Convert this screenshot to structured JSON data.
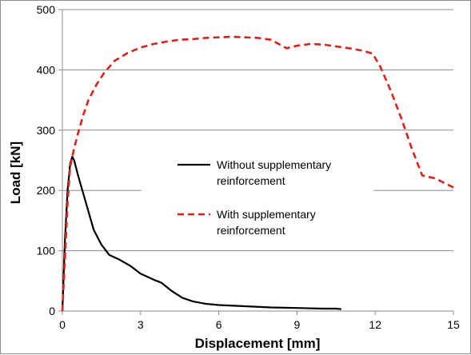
{
  "chart_data": {
    "type": "line",
    "title": "",
    "xlabel": "Displacement [mm]",
    "ylabel": "Load [kN]",
    "xlim": [
      0,
      15
    ],
    "ylim": [
      0,
      500
    ],
    "xticks": [
      0,
      3,
      6,
      9,
      12,
      15
    ],
    "yticks": [
      0,
      100,
      200,
      300,
      400,
      500
    ],
    "grid": "horizontal",
    "legend_position": "center-right",
    "series": [
      {
        "name": "Without supplementary reinforcement",
        "color": "#000000",
        "style": "solid",
        "points": [
          [
            0,
            0
          ],
          [
            0.05,
            60
          ],
          [
            0.1,
            120
          ],
          [
            0.2,
            200
          ],
          [
            0.3,
            245
          ],
          [
            0.38,
            256
          ],
          [
            0.45,
            250
          ],
          [
            0.6,
            225
          ],
          [
            0.8,
            195
          ],
          [
            1.0,
            165
          ],
          [
            1.2,
            135
          ],
          [
            1.5,
            110
          ],
          [
            1.8,
            93
          ],
          [
            2.2,
            85
          ],
          [
            2.6,
            75
          ],
          [
            3.0,
            62
          ],
          [
            3.5,
            52
          ],
          [
            3.8,
            47
          ],
          [
            4.2,
            33
          ],
          [
            4.6,
            22
          ],
          [
            5.0,
            16
          ],
          [
            5.5,
            12
          ],
          [
            6.0,
            10
          ],
          [
            7.0,
            8
          ],
          [
            8.0,
            6
          ],
          [
            9.0,
            5
          ],
          [
            10.0,
            4
          ],
          [
            10.5,
            4
          ],
          [
            10.7,
            3
          ]
        ]
      },
      {
        "name": "With supplementary reinforcement",
        "color": "#e0201b",
        "style": "dashed",
        "points": [
          [
            0,
            0
          ],
          [
            0.1,
            90
          ],
          [
            0.2,
            180
          ],
          [
            0.3,
            240
          ],
          [
            0.45,
            270
          ],
          [
            0.6,
            295
          ],
          [
            0.8,
            325
          ],
          [
            1.0,
            350
          ],
          [
            1.3,
            375
          ],
          [
            1.6,
            395
          ],
          [
            2.0,
            415
          ],
          [
            2.5,
            428
          ],
          [
            3.0,
            437
          ],
          [
            3.5,
            443
          ],
          [
            4.0,
            447
          ],
          [
            4.5,
            450
          ],
          [
            5.0,
            451
          ],
          [
            5.5,
            453
          ],
          [
            6.0,
            454
          ],
          [
            6.5,
            455
          ],
          [
            7.0,
            454
          ],
          [
            7.5,
            453
          ],
          [
            8.0,
            450
          ],
          [
            8.3,
            443
          ],
          [
            8.6,
            436
          ],
          [
            9.0,
            440
          ],
          [
            9.5,
            443
          ],
          [
            10.0,
            442
          ],
          [
            10.5,
            439
          ],
          [
            11.0,
            436
          ],
          [
            11.5,
            432
          ],
          [
            11.9,
            427
          ],
          [
            12.2,
            405
          ],
          [
            12.6,
            365
          ],
          [
            13.0,
            320
          ],
          [
            13.4,
            270
          ],
          [
            13.8,
            225
          ],
          [
            14.3,
            220
          ],
          [
            15.0,
            205
          ]
        ]
      }
    ]
  }
}
